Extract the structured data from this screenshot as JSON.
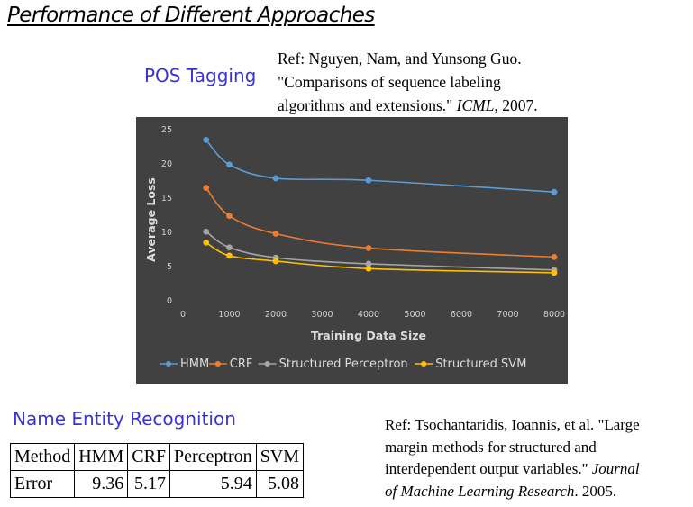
{
  "slide": {
    "title": "Performance of Different Approaches"
  },
  "pos_section": {
    "heading": "POS Tagging",
    "reference": {
      "line1": "Ref: Nguyen, Nam, and Yunsong Guo.",
      "line2": "\"Comparisons of sequence labeling",
      "line3_plain": "algorithms and extensions.\" ",
      "line3_italic": "ICML",
      "line3_end": ", 2007."
    }
  },
  "ner_section": {
    "heading": "Name Entity Recognition",
    "table": {
      "headers": [
        "Method",
        "HMM",
        "CRF",
        "Perceptron",
        "SVM"
      ],
      "rows": [
        [
          "Error",
          "9.36",
          "5.17",
          "5.94",
          "5.08"
        ]
      ]
    },
    "reference": {
      "line1": "Ref: Tsochantaridis, Ioannis, et al. \"Large",
      "line2": "margin methods for structured and",
      "line3_plain": "interdependent output variables.\" ",
      "line3_italic": "Journal",
      "line4_italic": "of Machine Learning Research",
      "line4_end": ". 2005."
    }
  },
  "chart_data": {
    "type": "line",
    "title": "",
    "xlabel": "Training Data Size",
    "ylabel": "Average Loss",
    "xlim": [
      0,
      8000
    ],
    "ylim": [
      0,
      25
    ],
    "xticks": [
      0,
      1000,
      2000,
      3000,
      4000,
      5000,
      6000,
      7000,
      8000
    ],
    "yticks": [
      0,
      5,
      10,
      15,
      20,
      25
    ],
    "grid": false,
    "legend_position": "bottom",
    "background": "#414141",
    "x": [
      500,
      1000,
      2000,
      4000,
      8000
    ],
    "series": [
      {
        "name": "HMM",
        "color": "#5b9bd5",
        "values": [
          23.5,
          19.9,
          17.9,
          17.6,
          15.9
        ]
      },
      {
        "name": "CRF",
        "color": "#ed7d31",
        "values": [
          16.5,
          12.4,
          9.8,
          7.7,
          6.4
        ]
      },
      {
        "name": "Structured Perceptron",
        "color": "#a5a5a5",
        "values": [
          10.1,
          7.8,
          6.3,
          5.4,
          4.5
        ]
      },
      {
        "name": "Structured SVM",
        "color": "#ffc000",
        "values": [
          8.5,
          6.6,
          5.8,
          4.7,
          4.1
        ]
      }
    ]
  }
}
